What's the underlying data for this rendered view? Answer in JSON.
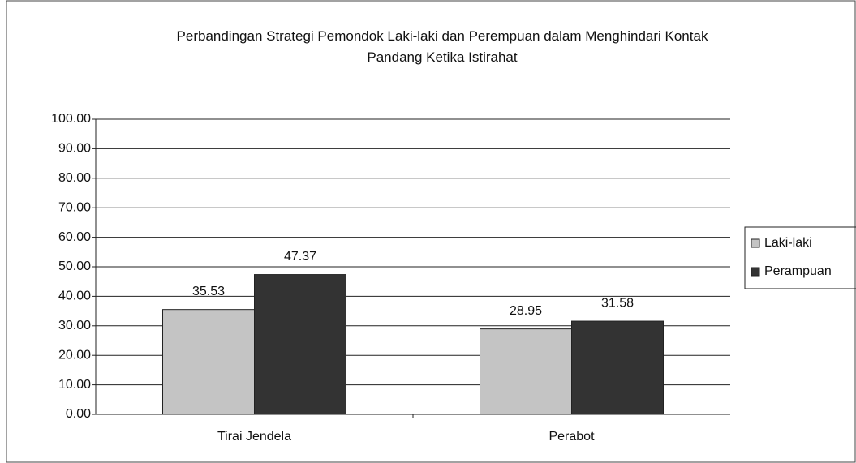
{
  "chart_data": {
    "type": "bar",
    "title": "Perbandingan Strategi Pemondok Laki-laki dan Perempuan dalam Menghindari Kontak Pandang Ketika Istirahat",
    "categories": [
      "Tirai Jendela",
      "Perabot"
    ],
    "series": [
      {
        "name": "Laki-laki",
        "color": "#c4c4c4",
        "values": [
          35.53,
          28.95
        ]
      },
      {
        "name": "Perampuan",
        "color": "#333333",
        "values": [
          47.37,
          31.58
        ]
      }
    ],
    "ylim": [
      0,
      100
    ],
    "yticks": [
      {
        "value": 0,
        "label": "0.00"
      },
      {
        "value": 10,
        "label": "10.00"
      },
      {
        "value": 20,
        "label": "20.00"
      },
      {
        "value": 30,
        "label": "30.00"
      },
      {
        "value": 40,
        "label": "40.00"
      },
      {
        "value": 50,
        "label": "50.00"
      },
      {
        "value": 60,
        "label": "60.00"
      },
      {
        "value": 70,
        "label": "70.00"
      },
      {
        "value": 80,
        "label": "80.00"
      },
      {
        "value": 90,
        "label": "90.00"
      },
      {
        "value": 100,
        "label": "100.00"
      }
    ],
    "grid": true,
    "legend": "right"
  }
}
